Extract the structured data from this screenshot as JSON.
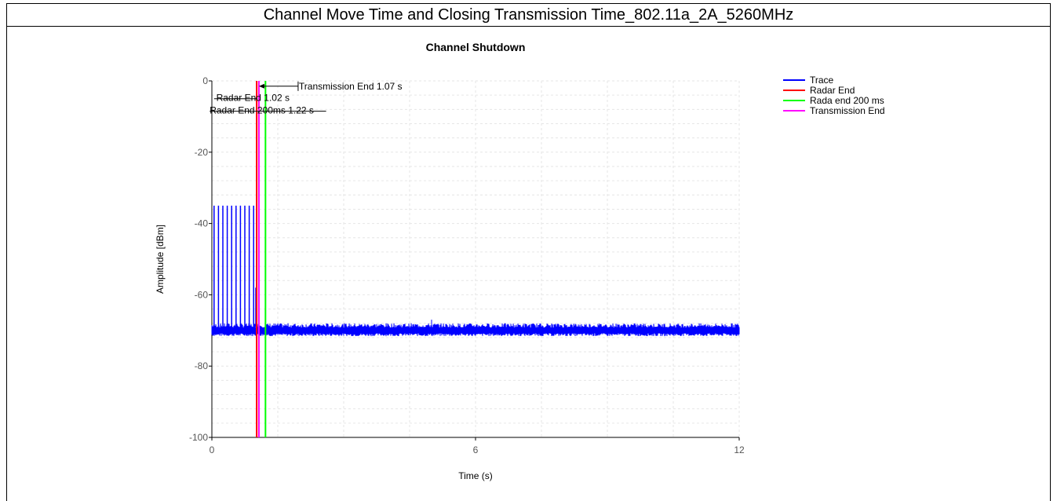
{
  "page": {
    "heading": "Channel Move Time and Closing Transmission Time_802.11a_2A_5260MHz"
  },
  "chart_data": {
    "type": "line",
    "title": "Channel Shutdown",
    "xlabel": "Time (s)",
    "ylabel": "Amplitude [dBm]",
    "xlim": [
      0,
      12
    ],
    "ylim": [
      -100,
      0
    ],
    "x_ticks": [
      0,
      6,
      12
    ],
    "y_ticks": [
      0,
      -20,
      -40,
      -60,
      -80,
      -100
    ],
    "grid": true,
    "legend_position": "top-right",
    "series": [
      {
        "name": "Trace",
        "color": "#0000ff",
        "noise_floor_dBm": [
          -71,
          -69
        ],
        "pulse_times_s": [
          0.05,
          0.15,
          0.25,
          0.35,
          0.45,
          0.55,
          0.65,
          0.75,
          0.85,
          0.95
        ],
        "pulse_peak_dBm": -35,
        "late_pulse": {
          "x": 1.0,
          "y": -58
        },
        "spurs": [
          {
            "x": 5.0,
            "y": -67
          }
        ]
      },
      {
        "name": "Radar End",
        "color": "#ff0000",
        "x": 1.02
      },
      {
        "name": "Rada end 200 ms",
        "color": "#00ff00",
        "x": 1.22
      },
      {
        "name": "Transmission End",
        "color": "#ff00ff",
        "x": 1.07
      }
    ],
    "annotations": [
      {
        "text": "Transmission End 1.07 s",
        "x": 1.07,
        "y": -1.5
      },
      {
        "text": "Radar End 1.02 s",
        "x": 1.02,
        "y": -5
      },
      {
        "text": "Radar End 200ms 1.22 s",
        "x": 1.22,
        "y": -8.5
      }
    ]
  }
}
